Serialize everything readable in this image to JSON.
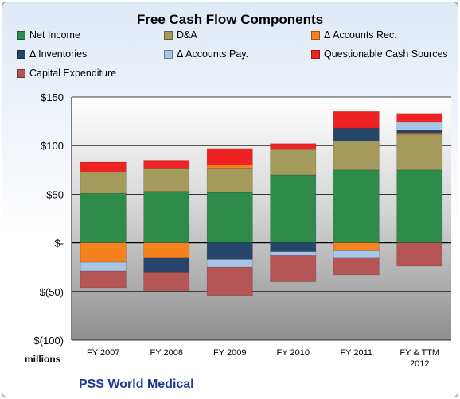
{
  "company": "PSS World Medical",
  "chart_data": {
    "type": "bar",
    "stacked": true,
    "title": "Free Cash Flow Components",
    "unit_label": "millions",
    "ylim": [
      -100,
      150
    ],
    "yticks": [
      {
        "value": 150,
        "label": "$150"
      },
      {
        "value": 100,
        "label": "$100"
      },
      {
        "value": 50,
        "label": "$50"
      },
      {
        "value": 0,
        "label": "$-"
      },
      {
        "value": -50,
        "label": "$(50)"
      },
      {
        "value": -100,
        "label": "$(100)"
      }
    ],
    "grid": true,
    "legend_position": "top",
    "categories": [
      "FY 2007",
      "FY 2008",
      "FY 2009",
      "FY 2010",
      "FY 2011",
      "FY & TTM 2012"
    ],
    "series": [
      {
        "name": "Net Income",
        "color": "#2e8b4a",
        "values": [
          51,
          53,
          52,
          70,
          75,
          75
        ]
      },
      {
        "name": "D&A",
        "color": "#a39a5c",
        "values": [
          22,
          24,
          25,
          26,
          30,
          36
        ]
      },
      {
        "name": "Δ Accounts Rec.",
        "color": "#f5821f",
        "values": [
          -20,
          -15,
          3,
          0,
          -8,
          2
        ]
      },
      {
        "name": "Δ Inventories",
        "color": "#27446b",
        "values": [
          0,
          -15,
          -17,
          -9,
          13,
          3
        ]
      },
      {
        "name": "Δ Accounts Pay.",
        "color": "#a9c4e4",
        "values": [
          -9,
          0,
          -8,
          -4,
          -7,
          8
        ]
      },
      {
        "name": "Questionable Cash Sources",
        "color": "#ee2222",
        "values": [
          10,
          8,
          17,
          6,
          17,
          9
        ]
      },
      {
        "name": "Capital Expenditure",
        "color": "#b55555",
        "values": [
          -17,
          -19,
          -29,
          -27,
          -18,
          -24
        ]
      }
    ]
  }
}
